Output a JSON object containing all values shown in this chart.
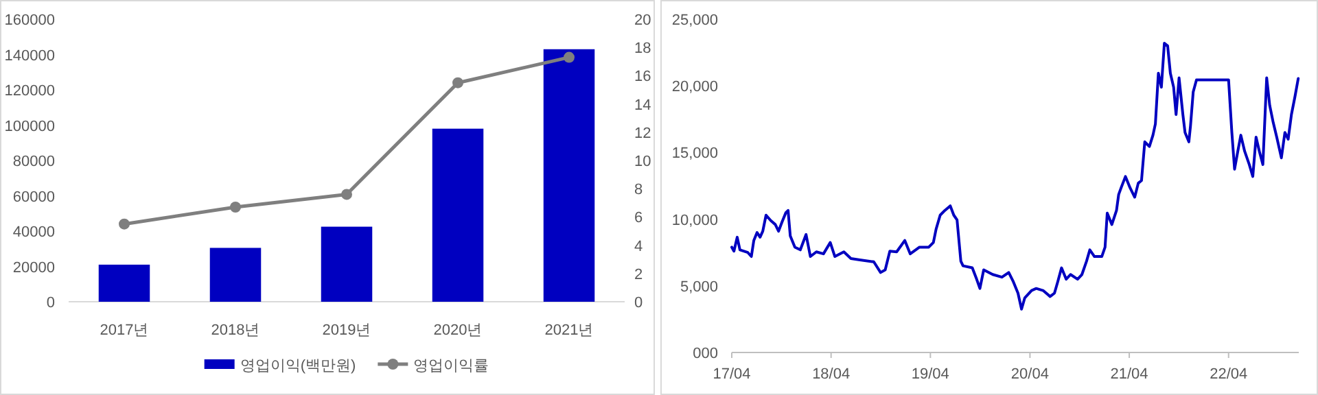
{
  "chart_data": [
    {
      "type": "bar",
      "categories": [
        "2017년",
        "2018년",
        "2019년",
        "2020년",
        "2021년"
      ],
      "series": [
        {
          "name": "영업이익(백만원)",
          "type": "bar",
          "color": "#0000c0",
          "values": [
            21000,
            30500,
            42500,
            98000,
            143000
          ]
        },
        {
          "name": "영업이익률",
          "type": "line",
          "axis": "y2",
          "color": "#7f7f7f",
          "marker": "circle",
          "values": [
            5.5,
            6.7,
            7.6,
            15.5,
            17.3
          ]
        }
      ],
      "ylim": [
        0,
        160000
      ],
      "yticks": [
        0,
        20000,
        40000,
        60000,
        80000,
        100000,
        120000,
        140000,
        160000
      ],
      "y2lim": [
        0,
        20
      ],
      "y2ticks": [
        0,
        2,
        4,
        6,
        8,
        10,
        12,
        14,
        16,
        18,
        20
      ],
      "legend": "bottom"
    },
    {
      "type": "line",
      "series": [
        {
          "color": "#0000c0",
          "x": [
            "2017-04-01",
            "2017-04-09",
            "2017-04-21",
            "2017-05-01",
            "2017-05-30",
            "2017-06-12",
            "2017-06-21",
            "2017-07-03",
            "2017-07-14",
            "2017-07-24",
            "2017-08-05",
            "2017-08-22",
            "2017-09-08",
            "2017-09-20",
            "2017-10-03",
            "2017-10-17",
            "2017-10-25",
            "2017-11-02",
            "2017-11-19",
            "2017-12-09",
            "2017-12-30",
            "2018-01-15",
            "2018-02-06",
            "2018-03-04",
            "2018-03-29",
            "2018-04-15",
            "2018-05-18",
            "2018-06-13",
            "2018-07-16",
            "2018-09-05",
            "2018-09-30",
            "2018-10-17",
            "2018-11-03",
            "2018-11-28",
            "2018-12-28",
            "2019-01-17",
            "2019-02-20",
            "2019-03-26",
            "2019-04-12",
            "2019-04-22",
            "2019-05-07",
            "2019-05-24",
            "2019-06-13",
            "2019-06-26",
            "2019-07-08",
            "2019-07-22",
            "2019-07-30",
            "2019-09-02",
            "2019-09-18",
            "2019-09-30",
            "2019-10-14",
            "2019-11-16",
            "2019-12-20",
            "2020-01-14",
            "2020-01-31",
            "2020-02-17",
            "2020-03-01",
            "2020-03-13",
            "2020-04-07",
            "2020-04-24",
            "2020-05-19",
            "2020-06-14",
            "2020-06-30",
            "2020-07-12",
            "2020-07-26",
            "2020-08-12",
            "2020-08-28",
            "2020-09-23",
            "2020-10-09",
            "2020-10-26",
            "2020-11-07",
            "2020-11-24",
            "2020-12-21",
            "2021-01-02",
            "2021-01-10",
            "2021-01-27",
            "2021-02-13",
            "2021-02-21",
            "2021-03-02",
            "2021-03-18",
            "2021-04-04",
            "2021-04-21",
            "2021-05-04",
            "2021-05-16",
            "2021-05-28",
            "2021-06-14",
            "2021-06-27",
            "2021-07-06",
            "2021-07-17",
            "2021-07-28",
            "2021-08-08",
            "2021-08-20",
            "2021-08-30",
            "2021-09-11",
            "2021-09-20",
            "2021-10-01",
            "2021-10-15",
            "2021-10-23",
            "2021-11-06",
            "2021-11-12",
            "2021-11-22",
            "2021-12-04",
            "2021-12-13",
            "2022-04-01",
            "2022-04-13",
            "2022-04-23",
            "2022-05-05",
            "2022-05-16",
            "2022-05-30",
            "2022-06-16",
            "2022-06-29",
            "2022-07-11",
            "2022-07-23",
            "2022-08-05",
            "2022-08-19",
            "2022-08-30",
            "2022-09-11",
            "2022-09-25",
            "2022-10-12",
            "2022-10-25",
            "2022-11-06",
            "2022-11-18",
            "2022-12-01",
            "2022-12-13"
          ],
          "values": [
            7900,
            7600,
            8650,
            7700,
            7500,
            7200,
            8400,
            9000,
            8650,
            9100,
            10300,
            9900,
            9600,
            9100,
            9800,
            10500,
            10650,
            8750,
            7900,
            7700,
            8850,
            7200,
            7550,
            7400,
            8250,
            7200,
            7550,
            7050,
            6950,
            6800,
            6000,
            6200,
            7600,
            7550,
            8400,
            7400,
            7900,
            7900,
            8250,
            9250,
            10300,
            10650,
            11000,
            10300,
            9950,
            6850,
            6500,
            6350,
            5500,
            4800,
            6200,
            5850,
            5650,
            6000,
            5300,
            4450,
            3250,
            4100,
            4650,
            4800,
            4650,
            4200,
            4450,
            5300,
            6350,
            5500,
            5850,
            5500,
            5850,
            6850,
            7700,
            7200,
            7200,
            7900,
            10450,
            9600,
            10650,
            11850,
            12350,
            13200,
            12350,
            11650,
            12700,
            12900,
            15800,
            15450,
            16300,
            17150,
            20950,
            19900,
            23200,
            23000,
            20950,
            19900,
            17850,
            20600,
            17850,
            16500,
            15800,
            17000,
            19550,
            20450,
            20450,
            20450,
            16500,
            13750,
            15100,
            16300,
            15100,
            14100,
            13200,
            16150,
            15100,
            14100,
            20600,
            18550,
            17350,
            16150,
            14600,
            16500,
            16000,
            17850,
            19200,
            20550
          ]
        }
      ],
      "xlim": [
        "2017-04-01",
        "2022-12-15"
      ],
      "xticks": [
        {
          "value": "2017-04-01",
          "label": "17/04"
        },
        {
          "value": "2018-04-01",
          "label": "18/04"
        },
        {
          "value": "2019-04-01",
          "label": "19/04"
        },
        {
          "value": "2020-04-01",
          "label": "20/04"
        },
        {
          "value": "2021-04-01",
          "label": "21/04"
        },
        {
          "value": "2022-04-01",
          "label": "22/04"
        }
      ],
      "ylim": [
        0,
        25000
      ],
      "yticks": [
        {
          "value": 0,
          "label": "000"
        },
        {
          "value": 5000,
          "label": "5,000"
        },
        {
          "value": 10000,
          "label": "10,000"
        },
        {
          "value": 15000,
          "label": "15,000"
        },
        {
          "value": 20000,
          "label": "20,000"
        },
        {
          "value": 25000,
          "label": "25,000"
        }
      ]
    }
  ]
}
